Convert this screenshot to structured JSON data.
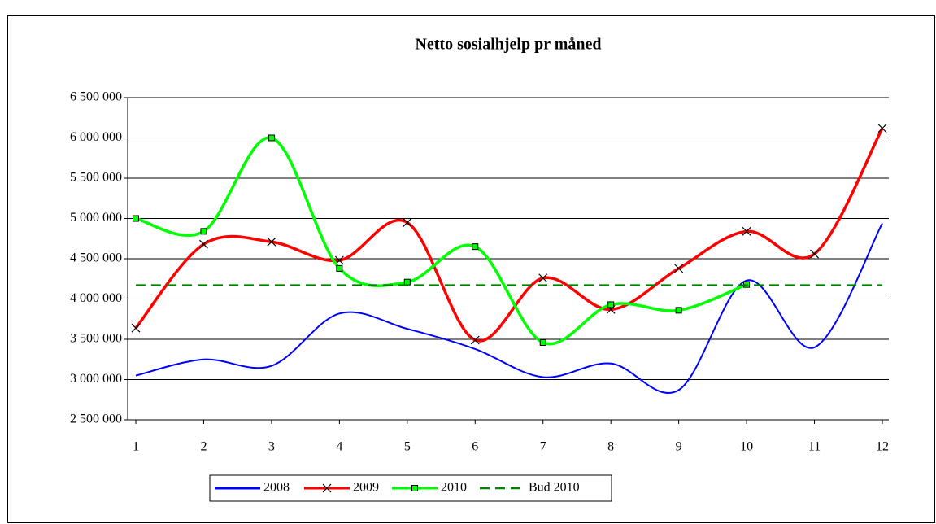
{
  "chart_data": {
    "type": "line",
    "title": "Netto sosialhjelp pr måned",
    "categories": [
      "1",
      "2",
      "3",
      "4",
      "5",
      "6",
      "7",
      "8",
      "9",
      "10",
      "11",
      "12"
    ],
    "ylim": [
      2500000,
      6500000
    ],
    "yticks": [
      {
        "value": 2500000,
        "label": "2 500 000"
      },
      {
        "value": 3000000,
        "label": "3 000 000"
      },
      {
        "value": 3500000,
        "label": "3 500 000"
      },
      {
        "value": 4000000,
        "label": "4 000 000"
      },
      {
        "value": 4500000,
        "label": "4 500 000"
      },
      {
        "value": 5000000,
        "label": "5 000 000"
      },
      {
        "value": 5500000,
        "label": "5 500 000"
      },
      {
        "value": 6000000,
        "label": "6 000 000"
      },
      {
        "value": 6500000,
        "label": "6 500 000"
      }
    ],
    "grid": true,
    "smooth": true,
    "legend": "bottom",
    "series": [
      {
        "name": "2008",
        "color": "#0000ff",
        "marker": "none",
        "dashed": false,
        "values": [
          3050000,
          3250000,
          3170000,
          3820000,
          3630000,
          3380000,
          3030000,
          3200000,
          2870000,
          4230000,
          3400000,
          4940000
        ]
      },
      {
        "name": "2009",
        "color": "#ff0000",
        "marker": "x",
        "dashed": false,
        "values": [
          3640000,
          4680000,
          4710000,
          4480000,
          4950000,
          3490000,
          4260000,
          3870000,
          4380000,
          4840000,
          4560000,
          6120000
        ]
      },
      {
        "name": "2010",
        "color": "#00ff00",
        "marker": "square",
        "dashed": false,
        "values": [
          5000000,
          4840000,
          6000000,
          4380000,
          4210000,
          4650000,
          3460000,
          3930000,
          3860000,
          4180000,
          null,
          null
        ]
      },
      {
        "name": "Bud 2010",
        "color": "#008000",
        "marker": "none",
        "dashed": true,
        "values": [
          4170000,
          4170000,
          4170000,
          4170000,
          4170000,
          4170000,
          4170000,
          4170000,
          4170000,
          4170000,
          4170000,
          4170000
        ]
      }
    ]
  }
}
